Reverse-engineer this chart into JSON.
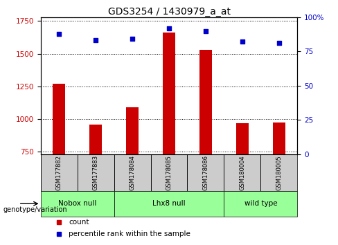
{
  "title": "GDS3254 / 1430979_a_at",
  "samples": [
    "GSM177882",
    "GSM177883",
    "GSM178084",
    "GSM178085",
    "GSM178086",
    "GSM180004",
    "GSM180005"
  ],
  "bar_values": [
    1270,
    960,
    1090,
    1660,
    1530,
    970,
    975
  ],
  "dot_values": [
    88,
    83,
    84,
    92,
    90,
    82,
    81
  ],
  "bar_bottom": 730,
  "ylim_left": [
    730,
    1780
  ],
  "ylim_right": [
    0,
    100
  ],
  "yticks_left": [
    750,
    1000,
    1250,
    1500,
    1750
  ],
  "yticks_right": [
    0,
    25,
    50,
    75,
    100
  ],
  "bar_color": "#cc0000",
  "dot_color": "#0000cc",
  "group_spans": [
    {
      "label": "Nobox null",
      "start": 0,
      "end": 1
    },
    {
      "label": "Lhx8 null",
      "start": 2,
      "end": 4
    },
    {
      "label": "wild type",
      "start": 5,
      "end": 6
    }
  ],
  "legend_count_label": "count",
  "legend_pct_label": "percentile rank within the sample",
  "genotype_label": "genotype/variation",
  "plot_bg_color": "#ffffff",
  "tick_label_color_left": "#cc0000",
  "tick_label_color_right": "#0000cc",
  "sample_box_color": "#cccccc",
  "group_box_color": "#99ff99",
  "bar_width": 0.35
}
